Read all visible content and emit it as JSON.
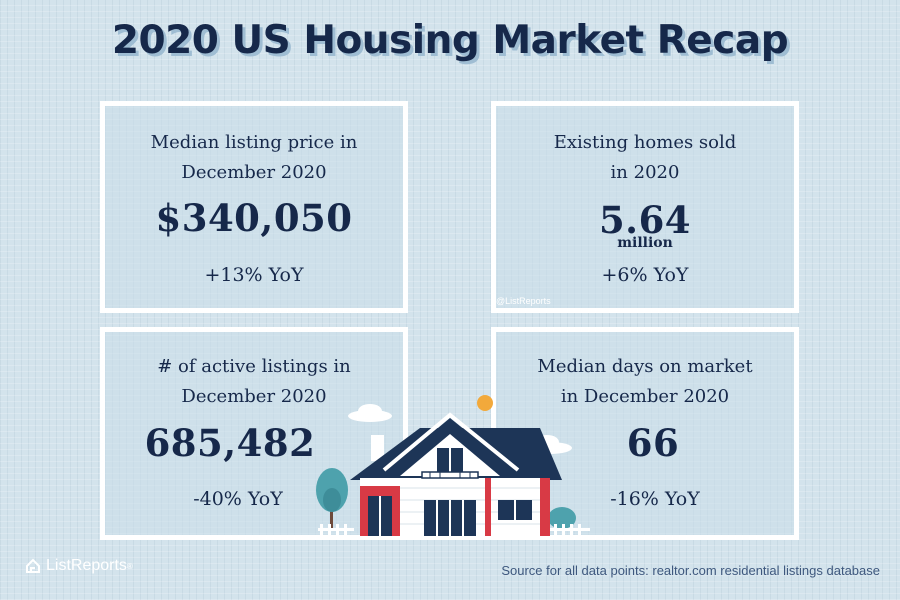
{
  "title": "2020 US Housing Market Recap",
  "cards": [
    {
      "label_line1": "Median listing price in",
      "label_line2": "December 2020",
      "value": "$340,050",
      "unit": "",
      "change": "+13% YoY"
    },
    {
      "label_line1": "Existing homes sold",
      "label_line2": "in 2020",
      "value": "5.64",
      "unit": "million",
      "change": "+6% YoY"
    },
    {
      "label_line1": "# of active listings in",
      "label_line2": "December 2020",
      "value": "685,482",
      "unit": "",
      "change": "-40% YoY"
    },
    {
      "label_line1": "Median days on market",
      "label_line2": "in December 2020",
      "value": "66",
      "unit": "",
      "change": "-16% YoY"
    }
  ],
  "watermark": "@ListReports",
  "logo_text": "ListReports",
  "logo_mark": "®",
  "source": "Source for all data points: realtor.com residential listings database",
  "icons": {
    "logo": "house-outline-icon",
    "illustration": "house-illustration"
  },
  "colors": {
    "background": "#d3e3ec",
    "navy": "#16284a",
    "red_accent": "#d83a45",
    "sun": "#f2a93b"
  }
}
